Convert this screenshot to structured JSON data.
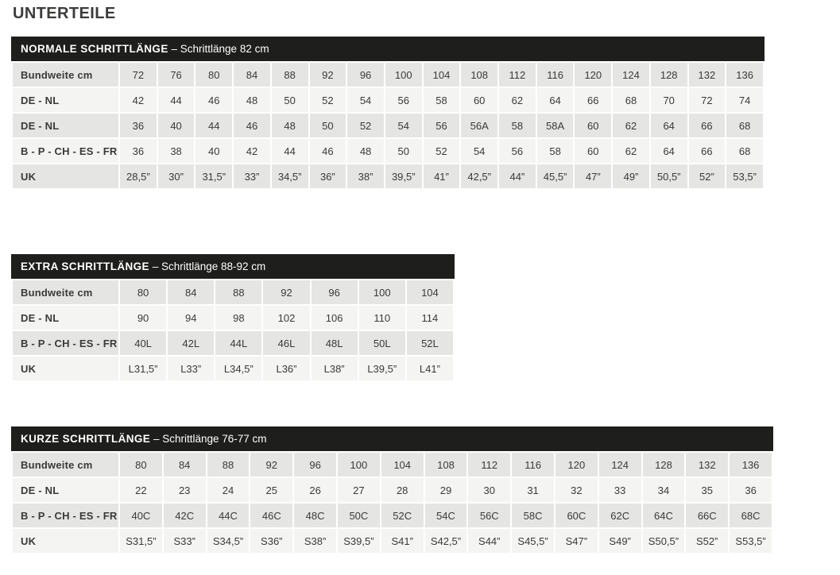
{
  "page_title": "UNTERTEILE",
  "colors": {
    "header_bar_bg": "#1e1e1c",
    "header_bar_text": "#ffffff",
    "row_shade_dark": "#e5e5e3",
    "row_shade_light": "#f4f4f2",
    "body_text": "#3a3a38",
    "title_text": "#3c3c3b"
  },
  "tables": [
    {
      "title_bold": "NORMALE SCHRITTLÄNGE",
      "title_rest": "– Schrittlänge 82 cm",
      "rows": [
        {
          "label": "Bundweite cm",
          "values": [
            "72",
            "76",
            "80",
            "84",
            "88",
            "92",
            "96",
            "100",
            "104",
            "108",
            "112",
            "116",
            "120",
            "124",
            "128",
            "132",
            "136"
          ]
        },
        {
          "label": "DE - NL",
          "values": [
            "42",
            "44",
            "46",
            "48",
            "50",
            "52",
            "54",
            "56",
            "58",
            "60",
            "62",
            "64",
            "66",
            "68",
            "70",
            "72",
            "74"
          ]
        },
        {
          "label": "DE - NL",
          "values": [
            "36",
            "40",
            "44",
            "46",
            "48",
            "50",
            "52",
            "54",
            "56",
            "56A",
            "58",
            "58A",
            "60",
            "62",
            "64",
            "66",
            "68"
          ]
        },
        {
          "label": "B - P - CH - ES - FR",
          "values": [
            "36",
            "38",
            "40",
            "42",
            "44",
            "46",
            "48",
            "50",
            "52",
            "54",
            "56",
            "58",
            "60",
            "62",
            "64",
            "66",
            "68"
          ]
        },
        {
          "label": "UK",
          "values": [
            "28,5”",
            "30”",
            "31,5”",
            "33”",
            "34,5”",
            "36”",
            "38”",
            "39,5”",
            "41”",
            "42,5”",
            "44”",
            "45,5”",
            "47”",
            "49”",
            "50,5”",
            "52”",
            "53,5”"
          ]
        }
      ]
    },
    {
      "title_bold": "EXTRA SCHRITTLÄNGE",
      "title_rest": "– Schrittlänge 88-92 cm",
      "rows": [
        {
          "label": "Bundweite cm",
          "values": [
            "80",
            "84",
            "88",
            "92",
            "96",
            "100",
            "104"
          ]
        },
        {
          "label": "DE - NL",
          "values": [
            "90",
            "94",
            "98",
            "102",
            "106",
            "110",
            "114"
          ]
        },
        {
          "label": "B - P - CH - ES - FR",
          "values": [
            "40L",
            "42L",
            "44L",
            "46L",
            "48L",
            "50L",
            "52L"
          ]
        },
        {
          "label": "UK",
          "values": [
            "L31,5”",
            "L33”",
            "L34,5”",
            "L36”",
            "L38”",
            "L39,5”",
            "L41”"
          ]
        }
      ]
    },
    {
      "title_bold": "KURZE SCHRITTLÄNGE",
      "title_rest": "– Schrittlänge 76-77 cm",
      "rows": [
        {
          "label": "Bundweite cm",
          "values": [
            "80",
            "84",
            "88",
            "92",
            "96",
            "100",
            "104",
            "108",
            "112",
            "116",
            "120",
            "124",
            "128",
            "132",
            "136"
          ]
        },
        {
          "label": "DE - NL",
          "values": [
            "22",
            "23",
            "24",
            "25",
            "26",
            "27",
            "28",
            "29",
            "30",
            "31",
            "32",
            "33",
            "34",
            "35",
            "36"
          ]
        },
        {
          "label": "B - P - CH - ES - FR",
          "values": [
            "40C",
            "42C",
            "44C",
            "46C",
            "48C",
            "50C",
            "52C",
            "54C",
            "56C",
            "58C",
            "60C",
            "62C",
            "64C",
            "66C",
            "68C"
          ]
        },
        {
          "label": "UK",
          "values": [
            "S31,5”",
            "S33”",
            "S34,5”",
            "S36”",
            "S38”",
            "S39,5”",
            "S41”",
            "S42,5”",
            "S44”",
            "S45,5”",
            "S47”",
            "S49”",
            "S50,5”",
            "S52”",
            "S53,5”"
          ]
        }
      ]
    }
  ]
}
